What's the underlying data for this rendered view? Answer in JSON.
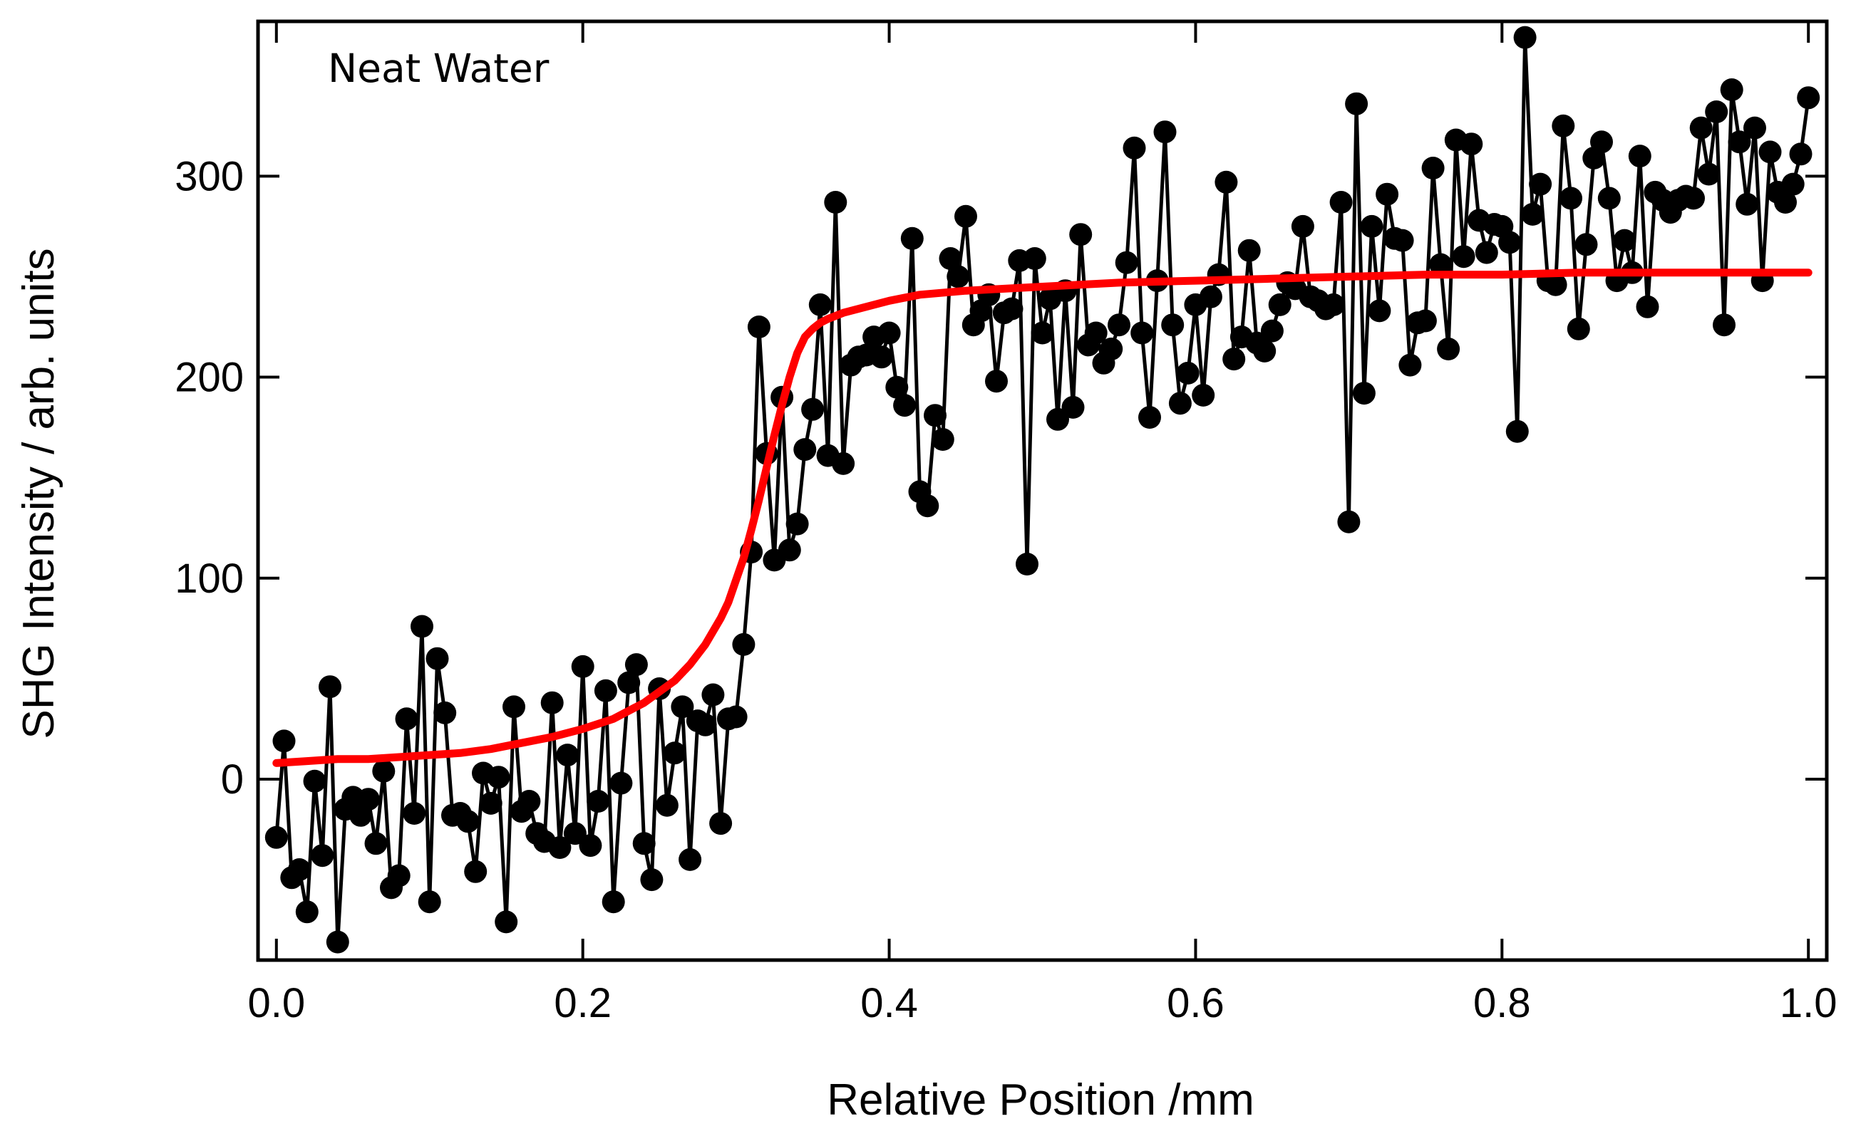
{
  "chart_data": {
    "type": "scatter",
    "annotation": "Neat Water",
    "xlabel": "Relative Position  /mm",
    "ylabel": "SHG Intensity   / arb. units",
    "xlim": [
      -0.012,
      1.012
    ],
    "ylim": [
      -90,
      377
    ],
    "x_ticks": [
      0.0,
      0.2,
      0.4,
      0.6,
      0.8,
      1.0
    ],
    "x_tick_labels": [
      "0.0",
      "0.2",
      "0.4",
      "0.6",
      "0.8",
      "1.0"
    ],
    "y_ticks": [
      0,
      100,
      200,
      300
    ],
    "y_tick_labels": [
      "0",
      "100",
      "200",
      "300"
    ],
    "grid": false,
    "colors": {
      "data": "#000000",
      "fit": "#ff0000",
      "frame": "#000000"
    },
    "series": [
      {
        "style": "markers+line",
        "x": [
          0.0,
          0.005,
          0.01,
          0.015,
          0.02,
          0.025,
          0.03,
          0.035,
          0.04,
          0.045,
          0.05,
          0.055,
          0.06,
          0.065,
          0.07,
          0.075,
          0.08,
          0.085,
          0.09,
          0.095,
          0.1,
          0.105,
          0.11,
          0.115,
          0.12,
          0.125,
          0.13,
          0.135,
          0.14,
          0.145,
          0.15,
          0.155,
          0.16,
          0.165,
          0.17,
          0.175,
          0.18,
          0.185,
          0.19,
          0.195,
          0.2,
          0.205,
          0.21,
          0.215,
          0.22,
          0.225,
          0.23,
          0.235,
          0.24,
          0.245,
          0.25,
          0.255,
          0.26,
          0.265,
          0.27,
          0.275,
          0.28,
          0.285,
          0.29,
          0.295,
          0.3,
          0.305,
          0.31,
          0.315,
          0.32,
          0.325,
          0.33,
          0.335,
          0.34,
          0.345,
          0.35,
          0.355,
          0.36,
          0.365,
          0.37,
          0.375,
          0.38,
          0.385,
          0.39,
          0.395,
          0.4,
          0.405,
          0.41,
          0.415,
          0.42,
          0.425,
          0.43,
          0.435,
          0.44,
          0.445,
          0.45,
          0.455,
          0.46,
          0.465,
          0.47,
          0.475,
          0.48,
          0.485,
          0.49,
          0.495,
          0.5,
          0.505,
          0.51,
          0.515,
          0.52,
          0.525,
          0.53,
          0.535,
          0.54,
          0.545,
          0.55,
          0.555,
          0.56,
          0.565,
          0.57,
          0.575,
          0.58,
          0.585,
          0.59,
          0.595,
          0.6,
          0.605,
          0.61,
          0.615,
          0.62,
          0.625,
          0.63,
          0.635,
          0.64,
          0.645,
          0.65,
          0.655,
          0.66,
          0.665,
          0.67,
          0.675,
          0.68,
          0.685,
          0.69,
          0.695,
          0.7,
          0.705,
          0.71,
          0.715,
          0.72,
          0.725,
          0.73,
          0.735,
          0.74,
          0.745,
          0.75,
          0.755,
          0.76,
          0.765,
          0.77,
          0.775,
          0.78,
          0.785,
          0.79,
          0.795,
          0.8,
          0.805,
          0.81,
          0.815,
          0.82,
          0.825,
          0.83,
          0.835,
          0.84,
          0.845,
          0.85,
          0.855,
          0.86,
          0.865,
          0.87,
          0.875,
          0.88,
          0.885,
          0.89,
          0.895,
          0.9,
          0.905,
          0.91,
          0.915,
          0.92,
          0.925,
          0.93,
          0.935,
          0.94,
          0.945,
          0.95,
          0.955,
          0.96,
          0.965,
          0.97,
          0.975,
          0.98,
          0.985,
          0.99,
          0.995,
          1.0
        ],
        "y": [
          -29,
          19,
          -49,
          -45,
          -66,
          -1,
          -38,
          46,
          -81,
          -15,
          -9,
          -18,
          -10,
          -32,
          4,
          -54,
          -48,
          30,
          -17,
          76,
          -61,
          60,
          33,
          -18,
          -17,
          -21,
          -46,
          3,
          -12,
          1,
          -71,
          36,
          -16,
          -11,
          -27,
          -31,
          38,
          -34,
          12,
          -27,
          56,
          -33,
          -11,
          44,
          -61,
          -2,
          48,
          57,
          -32,
          -50,
          45,
          -13,
          13,
          36,
          -40,
          29,
          27,
          42,
          -22,
          30,
          31,
          67,
          113,
          225,
          162,
          109,
          190,
          114,
          127,
          164,
          184,
          236,
          161,
          287,
          157,
          206,
          210,
          211,
          220,
          210,
          222,
          195,
          186,
          269,
          143,
          136,
          181,
          169,
          259,
          250,
          280,
          226,
          233,
          241,
          198,
          232,
          234,
          258,
          107,
          259,
          222,
          239,
          179,
          243,
          185,
          271,
          216,
          222,
          207,
          214,
          226,
          257,
          314,
          222,
          180,
          248,
          322,
          226,
          187,
          202,
          236,
          191,
          240,
          251,
          297,
          209,
          220,
          263,
          217,
          213,
          223,
          236,
          247,
          244,
          275,
          240,
          238,
          234,
          236,
          287,
          128,
          336,
          192,
          275,
          233,
          291,
          269,
          268,
          206,
          227,
          228,
          304,
          256,
          214,
          318,
          260,
          316,
          278,
          262,
          276,
          275,
          267,
          173,
          369,
          281,
          296,
          248,
          246,
          325,
          289,
          224,
          266,
          309,
          317,
          289,
          248,
          268,
          252,
          310,
          235,
          292,
          288,
          282,
          288,
          290,
          289,
          324,
          301,
          332,
          226,
          343,
          317,
          286,
          324,
          248,
          312,
          292,
          287,
          296,
          311,
          339
        ]
      },
      {
        "style": "line",
        "x": [
          0.0,
          0.02,
          0.04,
          0.06,
          0.08,
          0.1,
          0.12,
          0.14,
          0.16,
          0.18,
          0.2,
          0.22,
          0.24,
          0.26,
          0.27,
          0.28,
          0.29,
          0.295,
          0.3,
          0.305,
          0.31,
          0.315,
          0.32,
          0.325,
          0.33,
          0.335,
          0.34,
          0.345,
          0.35,
          0.355,
          0.36,
          0.37,
          0.38,
          0.4,
          0.42,
          0.45,
          0.5,
          0.55,
          0.6,
          0.65,
          0.7,
          0.75,
          0.8,
          0.85,
          0.9,
          0.95,
          1.0
        ],
        "y": [
          8,
          9,
          10,
          10,
          11,
          12,
          13,
          15,
          18,
          21,
          25,
          30,
          38,
          49,
          57,
          67,
          80,
          88,
          99,
          110,
          124,
          139,
          155,
          171,
          186,
          200,
          212,
          220,
          224,
          227,
          229,
          232,
          234,
          238,
          241,
          243,
          245,
          247,
          248,
          249,
          250,
          251,
          251,
          252,
          252,
          252,
          252
        ]
      }
    ]
  }
}
